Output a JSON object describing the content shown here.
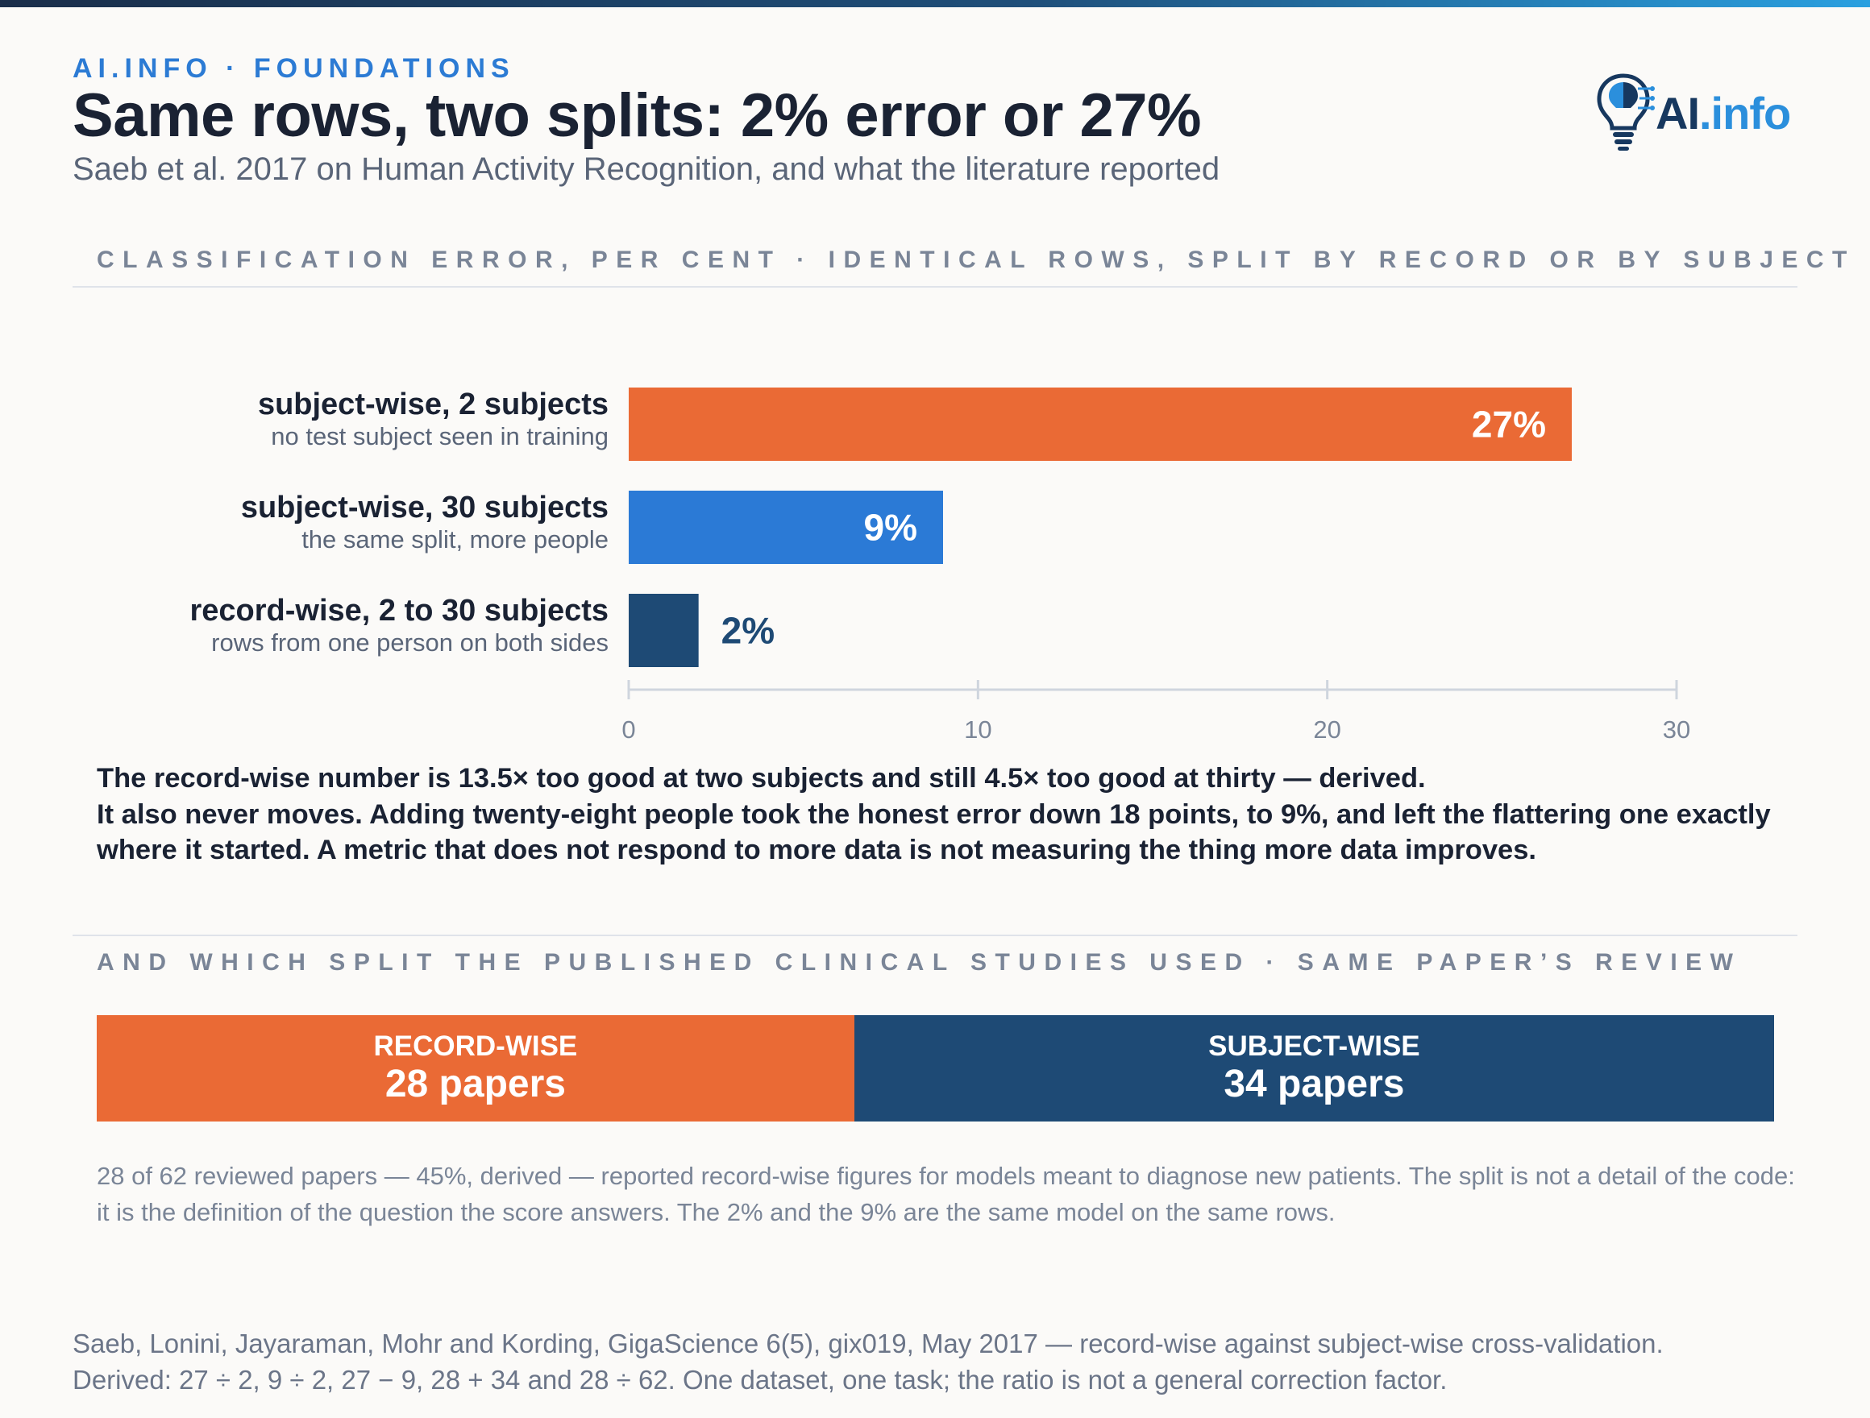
{
  "header": {
    "eyebrow": "AI.INFO · FOUNDATIONS",
    "title": "Same rows, two splits: 2% error or 27%",
    "subtitle": "Saeb et al. 2017 on Human Activity Recognition, and what the literature reported"
  },
  "logo": {
    "ai": "AI",
    "info": ".info",
    "icon": "lightbulb-brain-icon"
  },
  "chart_data": {
    "type": "bar",
    "orientation": "horizontal",
    "title": "CLASSIFICATION ERROR, PER CENT · IDENTICAL ROWS, SPLIT BY RECORD OR BY SUBJECT",
    "categories": [
      {
        "label": "subject-wise, 2 subjects",
        "sublabel": "no test subject seen in training"
      },
      {
        "label": "subject-wise, 30 subjects",
        "sublabel": "the same split, more people"
      },
      {
        "label": "record-wise, 2 to 30 subjects",
        "sublabel": "rows from one person on both sides"
      }
    ],
    "values": [
      27,
      9,
      2
    ],
    "value_labels": [
      "27%",
      "9%",
      "2%"
    ],
    "colors": [
      "#ea6a35",
      "#2b7ad6",
      "#1e4a75"
    ],
    "xlim": [
      0,
      30
    ],
    "xticks": [
      0,
      10,
      20,
      30
    ],
    "grid": false
  },
  "takeaway": {
    "line1": "The record-wise number is 13.5× too good at two subjects and still 4.5× too good at thirty — derived.",
    "line2": "It also never moves. Adding twenty-eight people took the honest error down 18 points, to 9%, and left the flattering one exactly where it started. A metric that does not respond to more data is not measuring the thing more data improves."
  },
  "split_section": {
    "label": "AND WHICH SPLIT THE PUBLISHED CLINICAL STUDIES USED · SAME PAPER’S REVIEW",
    "segments": [
      {
        "label": "RECORD-WISE",
        "value_text": "28 papers",
        "count": 28,
        "color": "#ea6a35"
      },
      {
        "label": "SUBJECT-WISE",
        "value_text": "34 papers",
        "count": 34,
        "color": "#1e4a75"
      }
    ]
  },
  "note": "28 of 62 reviewed papers — 45%, derived — reported record-wise figures for models meant to diagnose new patients. The split is not a detail of the code: it is the definition of the question the score answers. The 2% and the 9% are the same model on the same rows.",
  "footer": {
    "line1": "Saeb, Lonini, Jayaraman, Mohr and Kording, GigaScience 6(5), gix019, May 2017 — record-wise against subject-wise cross-validation.",
    "line2": "Derived: 27 ÷ 2, 9 ÷ 2, 27 − 9, 28 + 34 and 28 ÷ 62. One dataset, one task; the ratio is not a general correction factor."
  }
}
